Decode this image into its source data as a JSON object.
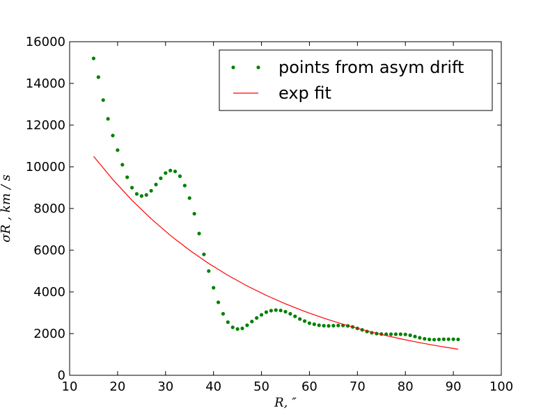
{
  "chart_data": {
    "type": "line",
    "xlabel": "R, ″",
    "ylabel": "σR , km / s",
    "xlim": [
      10,
      100
    ],
    "ylim": [
      0,
      16000
    ],
    "xticks": [
      10,
      20,
      30,
      40,
      50,
      60,
      70,
      80,
      90,
      100
    ],
    "yticks": [
      0,
      2000,
      4000,
      6000,
      8000,
      10000,
      12000,
      14000,
      16000
    ],
    "legend": "upper right",
    "series": [
      {
        "name": "points from asym drift",
        "color": "#008000",
        "marker": "dot",
        "x": [
          15,
          16,
          17,
          18,
          19,
          20,
          21,
          22,
          23,
          24,
          25,
          26,
          27,
          28,
          29,
          30,
          31,
          32,
          33,
          34,
          35,
          36,
          37,
          38,
          39,
          40,
          41,
          42,
          43,
          44,
          45,
          46,
          47,
          48,
          49,
          50,
          51,
          52,
          53,
          54,
          55,
          56,
          57,
          58,
          59,
          60,
          61,
          62,
          63,
          64,
          65,
          66,
          67,
          68,
          69,
          70,
          71,
          72,
          73,
          74,
          75,
          76,
          77,
          78,
          79,
          80,
          81,
          82,
          83,
          84,
          85,
          86,
          87,
          88,
          89,
          90,
          91
        ],
        "values": [
          15200,
          14300,
          13200,
          12300,
          11500,
          10800,
          10100,
          9500,
          9000,
          8700,
          8600,
          8650,
          8850,
          9150,
          9450,
          9700,
          9820,
          9780,
          9550,
          9100,
          8500,
          7750,
          6800,
          5800,
          5000,
          4200,
          3500,
          2950,
          2550,
          2300,
          2220,
          2250,
          2400,
          2580,
          2750,
          2900,
          3030,
          3100,
          3130,
          3110,
          3050,
          2950,
          2830,
          2700,
          2600,
          2500,
          2450,
          2400,
          2380,
          2370,
          2380,
          2390,
          2390,
          2370,
          2320,
          2250,
          2180,
          2100,
          2040,
          2000,
          1980,
          1970,
          1970,
          1970,
          1970,
          1960,
          1920,
          1860,
          1800,
          1750,
          1720,
          1710,
          1720,
          1730,
          1730,
          1730,
          1720
        ]
      },
      {
        "name": "exp fit",
        "color": "#ff0000",
        "marker": "none",
        "x": [
          15,
          19,
          23,
          27,
          31,
          35,
          39,
          43,
          47,
          51,
          55,
          59,
          63,
          67,
          71,
          75,
          79,
          83,
          87,
          91
        ],
        "values": [
          10500,
          9390,
          8395,
          7505,
          6710,
          5999,
          5363,
          4795,
          4287,
          3833,
          3427,
          3064,
          2739,
          2449,
          2189,
          1957,
          1750,
          1565,
          1399,
          1250
        ]
      }
    ]
  }
}
